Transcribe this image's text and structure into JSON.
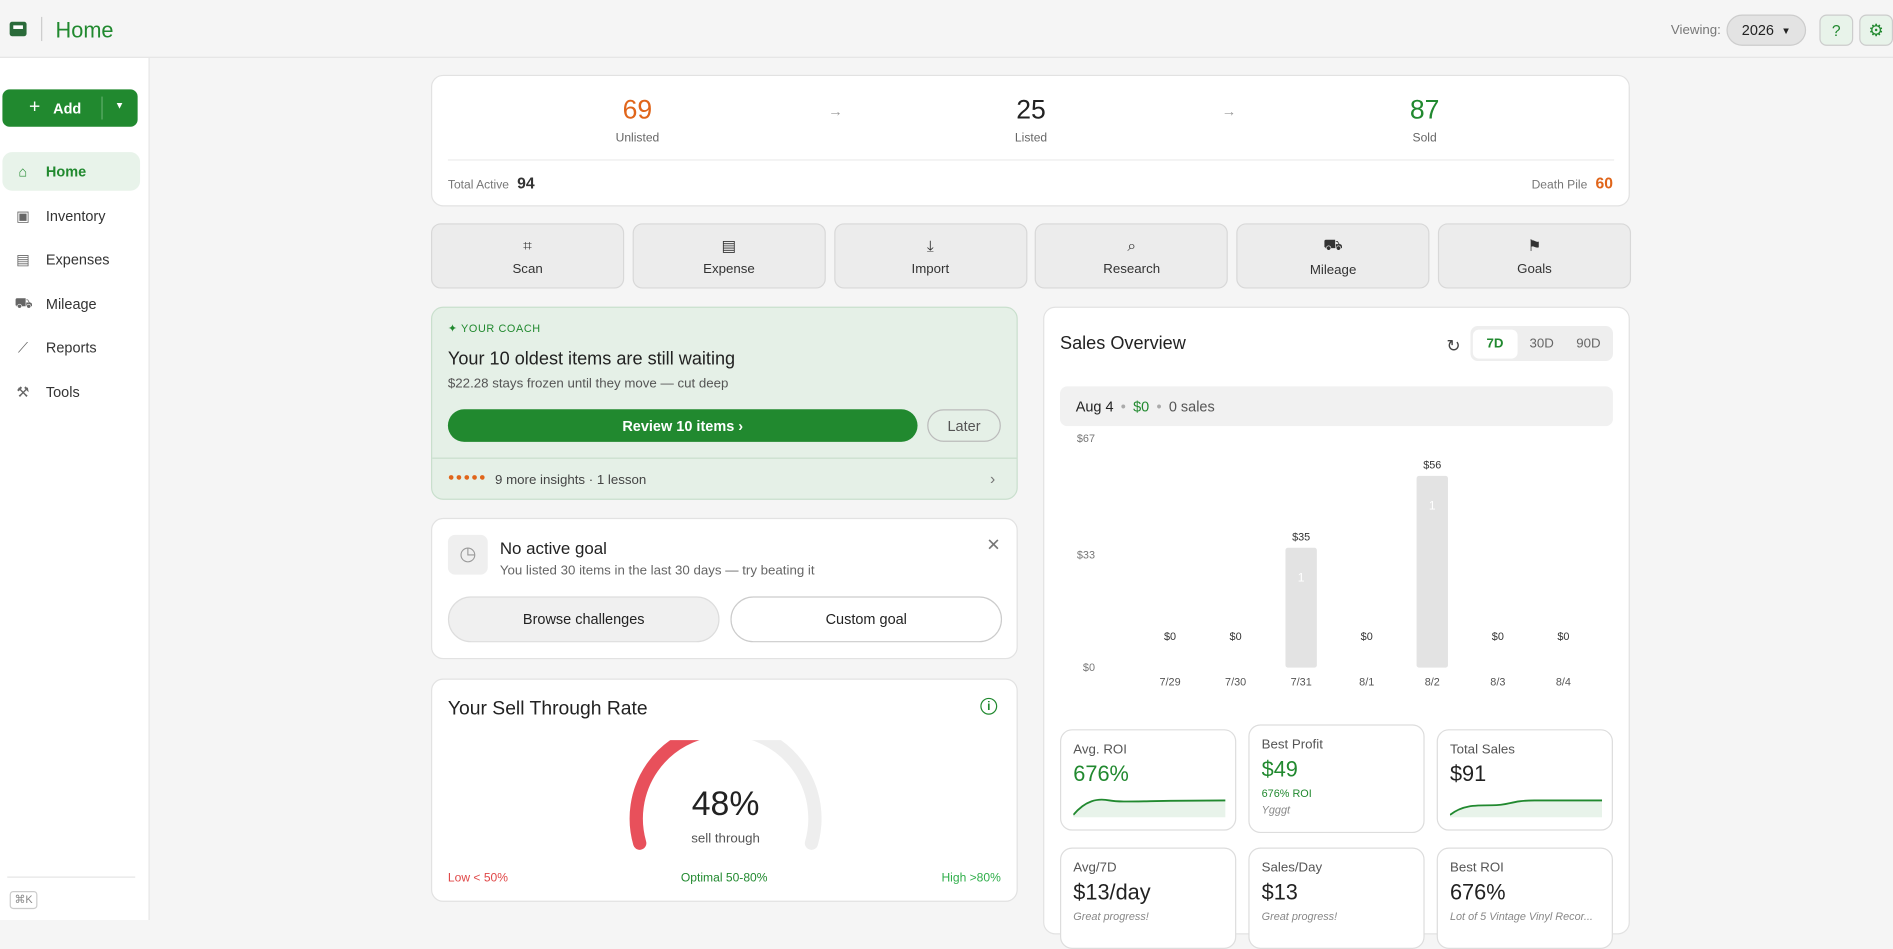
{
  "header": {
    "title": "Home",
    "viewing_label": "Viewing:",
    "year": "2026"
  },
  "sidebar": {
    "add": "Add",
    "nav": [
      "Home",
      "Inventory",
      "Expenses",
      "Mileage",
      "Reports",
      "Tools"
    ],
    "shortcut": "⌘K"
  },
  "pipeline": {
    "stages": [
      {
        "value": 69,
        "label": "Unlisted"
      },
      {
        "value": 25,
        "label": "Listed"
      },
      {
        "value": 87,
        "label": "Sold"
      }
    ],
    "total_active_label": "Total Active",
    "total_active": 94,
    "death_pile_label": "Death Pile",
    "death_pile": 60
  },
  "quick_actions": [
    "Scan",
    "Expense",
    "Import",
    "Research",
    "Mileage",
    "Goals"
  ],
  "coach": {
    "tag": "YOUR COACH",
    "title": "Your 10 oldest items are still waiting",
    "subtitle": "$22.28 stays frozen until they move — cut deep",
    "primary": "Review 10 items",
    "secondary": "Later",
    "footer": "9 more insights · 1 lesson"
  },
  "goal": {
    "title": "No active goal",
    "subtitle": "You listed 30 items in the last 30 days — try beating it",
    "buttons": [
      "Browse challenges",
      "Custom goal"
    ]
  },
  "sell_through": {
    "title": "Your Sell Through Rate",
    "value": 48,
    "value_label": "48%",
    "caption": "sell through",
    "low": "Low < 50%",
    "optimal": "Optimal 50-80%",
    "high": "High >80%"
  },
  "sales": {
    "title": "Sales Overview",
    "ranges": [
      "7D",
      "30D",
      "90D"
    ],
    "summary": {
      "date": "Aug 4",
      "amount": "$0",
      "count": "0 sales"
    },
    "chart": {
      "type": "bar",
      "categories": [
        "7/29",
        "7/30",
        "7/31",
        "8/1",
        "8/2",
        "8/3",
        "8/4"
      ],
      "values": [
        0,
        0,
        35,
        0,
        56,
        0,
        0
      ],
      "value_labels": [
        "$0",
        "$0",
        "$35",
        "$0",
        "$56",
        "$0",
        "$0"
      ],
      "sale_counts": [
        null,
        null,
        1,
        null,
        1,
        null,
        null
      ],
      "color": "#e3e3e3",
      "ylim": [
        0,
        67
      ],
      "yticks": [
        {
          "value": 0,
          "label": "$0"
        },
        {
          "value": 33,
          "label": "$33"
        },
        {
          "value": 67,
          "label": "$67"
        }
      ]
    },
    "metrics": [
      {
        "label": "Avg. ROI",
        "value": "676%"
      },
      {
        "label": "Best Profit",
        "value": "$49",
        "sub": "676% ROI",
        "note": "Ygggt"
      },
      {
        "label": "Total Sales",
        "value": "$91"
      },
      {
        "label": "Avg/7D",
        "value": "$13/day",
        "note": "Great progress!"
      },
      {
        "label": "Sales/Day",
        "value": "$13",
        "note": "Great progress!"
      },
      {
        "label": "Best ROI",
        "value": "676%",
        "note": "Lot of 5 Vintage Vinyl Recor..."
      }
    ]
  }
}
